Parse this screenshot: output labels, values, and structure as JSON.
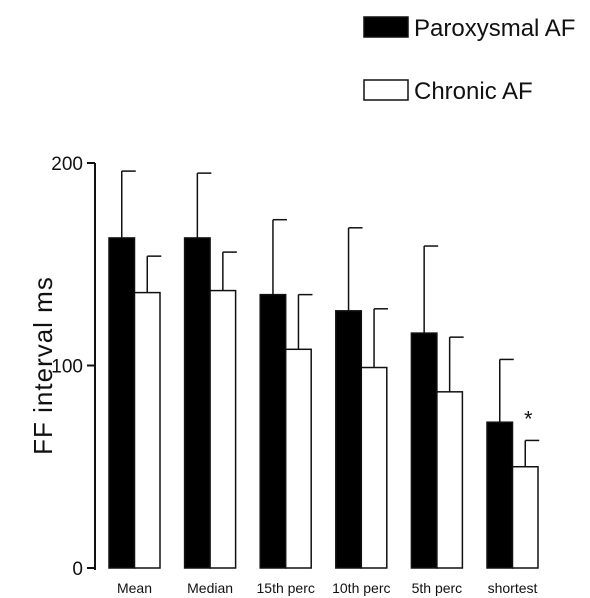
{
  "chart_data": {
    "type": "bar",
    "categories": [
      "Mean",
      "Median",
      "15th perc",
      "10th perc",
      "5th perc",
      "shortest"
    ],
    "series": [
      {
        "name": "Paroxysmal AF",
        "color": "#000000",
        "values": [
          163,
          163,
          135,
          127,
          116,
          72
        ],
        "error": [
          33,
          32,
          37,
          41,
          43,
          31
        ]
      },
      {
        "name": "Chronic AF",
        "color": "#ffffff",
        "values": [
          136,
          137,
          108,
          99,
          87,
          50
        ],
        "error": [
          18,
          19,
          27,
          29,
          27,
          13
        ]
      }
    ],
    "ylabel": "FF interval ms",
    "xlabel": "",
    "ylim": [
      0,
      200
    ],
    "yticks": [
      "0",
      "100",
      "200"
    ],
    "annotations": [
      {
        "category": "shortest",
        "text": "*"
      }
    ],
    "legend_position": "top-right",
    "grid": false
  }
}
